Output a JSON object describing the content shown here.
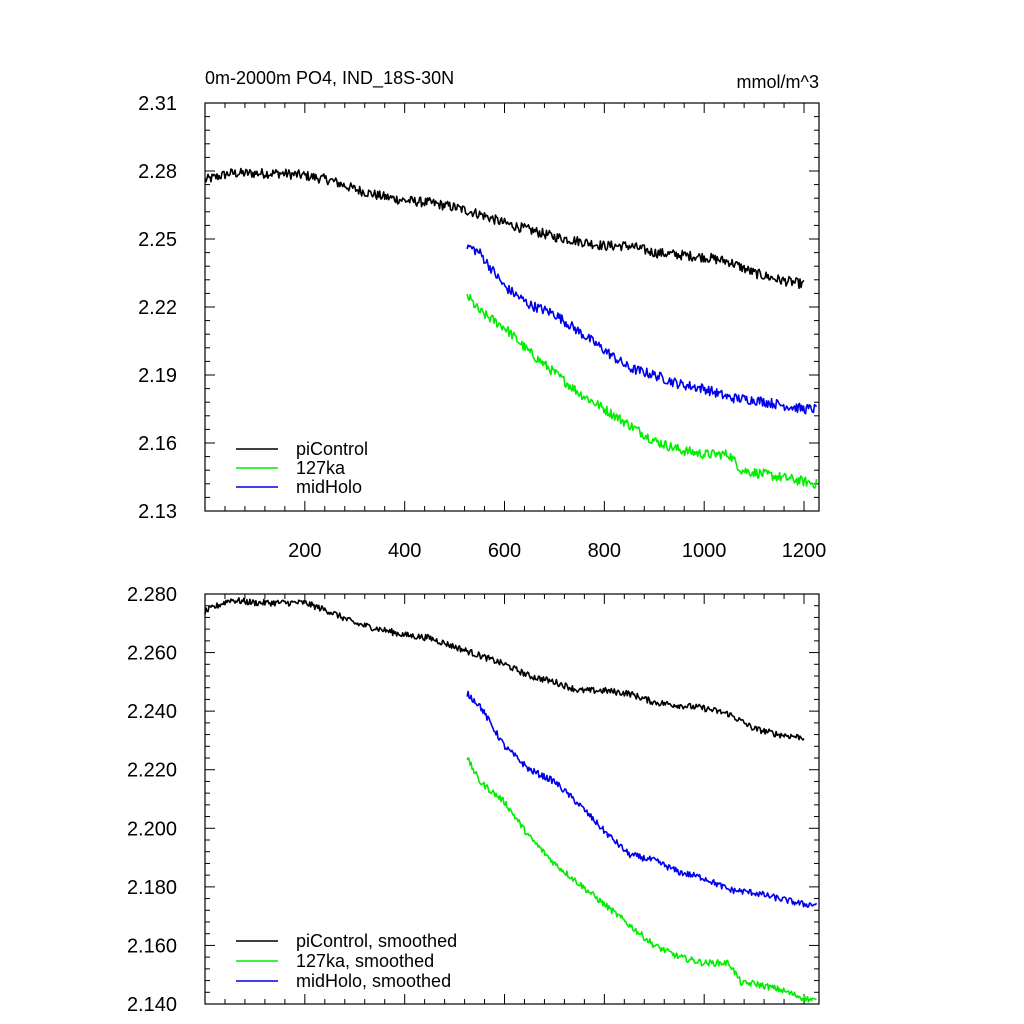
{
  "chart_data": [
    {
      "type": "line",
      "title": "0m-2000m PO4, IND_18S-30N",
      "units": "mmol/m^3",
      "xlim": [
        0,
        1230
      ],
      "ylim": [
        2.13,
        2.31
      ],
      "xticks": [
        200,
        400,
        600,
        800,
        1000,
        1200
      ],
      "xtick_labels": [
        "200",
        "400",
        "600",
        "800",
        "1000",
        "1200"
      ],
      "yticks": [
        2.13,
        2.16,
        2.19,
        2.22,
        2.25,
        2.28,
        2.31
      ],
      "ytick_labels": [
        "2.13",
        "2.16",
        "2.19",
        "2.22",
        "2.25",
        "2.28",
        "2.31"
      ],
      "legend_position": "bottom-left",
      "series": [
        {
          "name": "piControl",
          "color": "#000000",
          "x": [
            0,
            50,
            100,
            150,
            200,
            250,
            300,
            350,
            400,
            450,
            500,
            550,
            600,
            650,
            700,
            750,
            800,
            850,
            900,
            950,
            1000,
            1050,
            1100,
            1150,
            1200
          ],
          "y": [
            2.276,
            2.279,
            2.279,
            2.279,
            2.278,
            2.276,
            2.272,
            2.269,
            2.267,
            2.266,
            2.264,
            2.261,
            2.257,
            2.254,
            2.251,
            2.249,
            2.247,
            2.247,
            2.244,
            2.243,
            2.242,
            2.24,
            2.235,
            2.232,
            2.23
          ]
        },
        {
          "name": "127ka",
          "color": "#00ee00",
          "x": [
            525,
            550,
            600,
            650,
            700,
            750,
            800,
            850,
            900,
            950,
            1000,
            1050,
            1075,
            1100,
            1150,
            1200,
            1225
          ],
          "y": [
            2.225,
            2.218,
            2.211,
            2.2,
            2.191,
            2.182,
            2.175,
            2.168,
            2.161,
            2.157,
            2.155,
            2.155,
            2.148,
            2.147,
            2.145,
            2.143,
            2.142
          ]
        },
        {
          "name": "midHolo",
          "color": "#0000ee",
          "x": [
            525,
            550,
            600,
            650,
            700,
            750,
            800,
            850,
            900,
            950,
            1000,
            1050,
            1100,
            1150,
            1200,
            1225
          ],
          "y": [
            2.247,
            2.244,
            2.229,
            2.221,
            2.217,
            2.209,
            2.201,
            2.193,
            2.19,
            2.186,
            2.184,
            2.18,
            2.179,
            2.177,
            2.175,
            2.175
          ]
        }
      ]
    },
    {
      "type": "line",
      "title": "",
      "xlim": [
        0,
        1230
      ],
      "ylim": [
        2.14,
        2.28
      ],
      "xticks": [
        200,
        400,
        600,
        800,
        1000,
        1200
      ],
      "yticks": [
        2.14,
        2.16,
        2.18,
        2.2,
        2.22,
        2.24,
        2.26,
        2.28
      ],
      "ytick_labels": [
        "2.140",
        "2.160",
        "2.180",
        "2.200",
        "2.220",
        "2.240",
        "2.260",
        "2.280"
      ],
      "legend_position": "bottom-left",
      "series": [
        {
          "name": "piControl, smoothed",
          "color": "#000000",
          "x": [
            0,
            50,
            100,
            150,
            200,
            250,
            300,
            350,
            400,
            450,
            500,
            550,
            600,
            650,
            700,
            750,
            800,
            850,
            900,
            950,
            1000,
            1050,
            1100,
            1150,
            1200
          ],
          "y": [
            2.274,
            2.278,
            2.277,
            2.277,
            2.277,
            2.274,
            2.27,
            2.268,
            2.266,
            2.265,
            2.262,
            2.259,
            2.256,
            2.252,
            2.25,
            2.247,
            2.247,
            2.246,
            2.243,
            2.242,
            2.241,
            2.239,
            2.234,
            2.232,
            2.231
          ]
        },
        {
          "name": "127ka, smoothed",
          "color": "#00ee00",
          "x": [
            525,
            550,
            600,
            650,
            700,
            750,
            800,
            850,
            900,
            950,
            1000,
            1050,
            1075,
            1100,
            1150,
            1200,
            1225
          ],
          "y": [
            2.224,
            2.216,
            2.209,
            2.197,
            2.188,
            2.181,
            2.174,
            2.167,
            2.16,
            2.156,
            2.154,
            2.154,
            2.147,
            2.147,
            2.145,
            2.142,
            2.141
          ]
        },
        {
          "name": "midHolo, smoothed",
          "color": "#0000ee",
          "x": [
            525,
            550,
            600,
            650,
            700,
            750,
            800,
            850,
            900,
            950,
            1000,
            1050,
            1100,
            1150,
            1200,
            1225
          ],
          "y": [
            2.246,
            2.242,
            2.228,
            2.22,
            2.216,
            2.208,
            2.199,
            2.191,
            2.189,
            2.185,
            2.183,
            2.179,
            2.178,
            2.176,
            2.174,
            2.174
          ]
        }
      ]
    }
  ]
}
